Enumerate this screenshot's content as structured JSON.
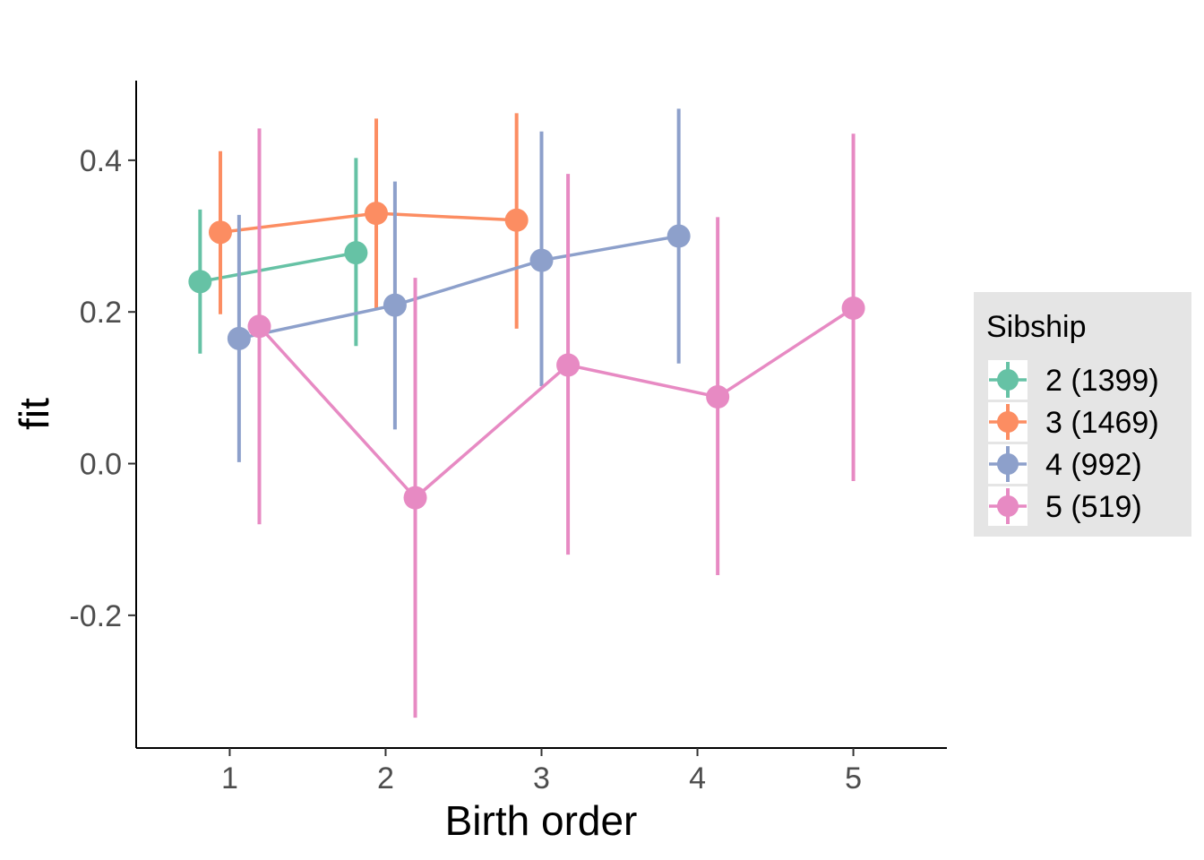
{
  "chart_data": {
    "type": "line",
    "title": "",
    "xlabel": "Birth order",
    "ylabel": "fit",
    "xlim": [
      0.4,
      5.6
    ],
    "ylim": [
      -0.375,
      0.505
    ],
    "x_ticks": [
      1,
      2,
      3,
      4,
      5
    ],
    "x_tick_labels": [
      "1",
      "2",
      "3",
      "4",
      "5"
    ],
    "y_ticks": [
      -0.2,
      0.0,
      0.2,
      0.4
    ],
    "y_tick_labels": [
      "-0.2",
      "0.0",
      "0.2",
      "0.4"
    ],
    "grid": false,
    "legend": {
      "title": "Sibship",
      "placement": "right"
    },
    "series": [
      {
        "name": "2 (1399)",
        "color": "#66c2a5",
        "points": [
          {
            "x": 0.81,
            "y": 0.24,
            "lo": 0.145,
            "hi": 0.335
          },
          {
            "x": 1.81,
            "y": 0.278,
            "lo": 0.155,
            "hi": 0.403
          }
        ]
      },
      {
        "name": "3 (1469)",
        "color": "#fc8d62",
        "points": [
          {
            "x": 0.94,
            "y": 0.305,
            "lo": 0.197,
            "hi": 0.412
          },
          {
            "x": 1.94,
            "y": 0.33,
            "lo": 0.205,
            "hi": 0.455
          },
          {
            "x": 2.84,
            "y": 0.321,
            "lo": 0.178,
            "hi": 0.462
          }
        ]
      },
      {
        "name": "4 (992)",
        "color": "#8da0cb",
        "points": [
          {
            "x": 1.06,
            "y": 0.165,
            "lo": 0.002,
            "hi": 0.328
          },
          {
            "x": 2.06,
            "y": 0.209,
            "lo": 0.045,
            "hi": 0.372
          },
          {
            "x": 3.0,
            "y": 0.268,
            "lo": 0.102,
            "hi": 0.438
          },
          {
            "x": 3.88,
            "y": 0.3,
            "lo": 0.132,
            "hi": 0.468
          }
        ]
      },
      {
        "name": "5 (519)",
        "color": "#e78ac3",
        "points": [
          {
            "x": 1.19,
            "y": 0.181,
            "lo": -0.08,
            "hi": 0.442
          },
          {
            "x": 2.19,
            "y": -0.045,
            "lo": -0.335,
            "hi": 0.245
          },
          {
            "x": 3.17,
            "y": 0.13,
            "lo": -0.12,
            "hi": 0.382
          },
          {
            "x": 4.13,
            "y": 0.088,
            "lo": -0.147,
            "hi": 0.325
          },
          {
            "x": 5.0,
            "y": 0.205,
            "lo": -0.023,
            "hi": 0.435
          }
        ]
      }
    ]
  }
}
